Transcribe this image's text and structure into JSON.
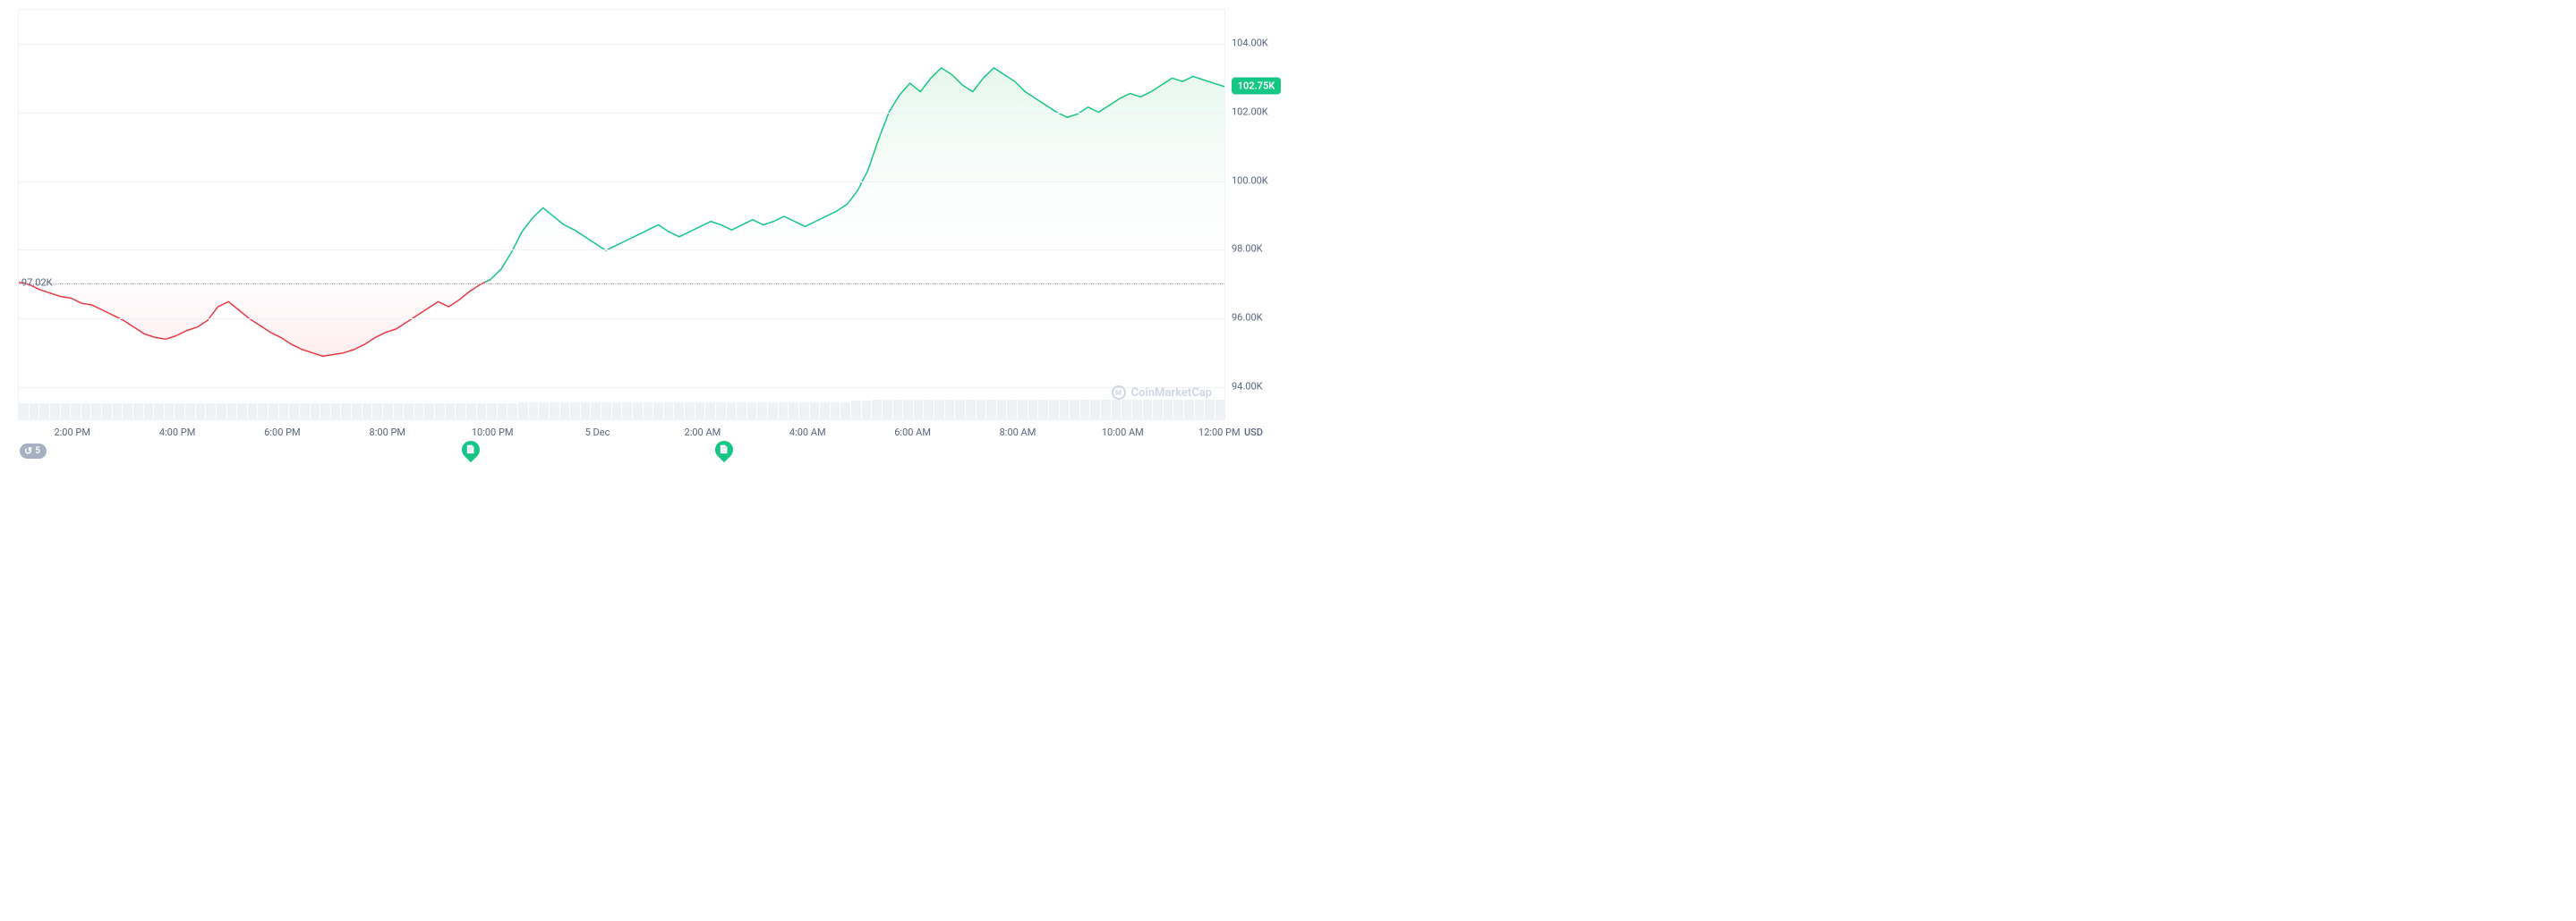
{
  "chart": {
    "type": "area-line",
    "currency": "USD",
    "watermark": "CoinMarketCap",
    "baseline_value": 97.02,
    "baseline_label": "97.02K",
    "current_value": 102.75,
    "current_label": "102.75K",
    "y_axis": {
      "min": 93.0,
      "max": 105.0,
      "ticks": [
        94.0,
        96.0,
        98.0,
        100.0,
        102.0,
        104.0
      ],
      "tick_labels": [
        "94.00K",
        "96.00K",
        "98.00K",
        "100.00K",
        "102.00K",
        "104.00K"
      ],
      "label_color": "#58667e",
      "grid_color": "#f0f2f5",
      "baseline_color": "#a6b0c3"
    },
    "x_axis": {
      "ticks": [
        "2:00 PM",
        "4:00 PM",
        "6:00 PM",
        "8:00 PM",
        "10:00 PM",
        "5 Dec",
        "2:00 AM",
        "4:00 AM",
        "6:00 AM",
        "8:00 AM",
        "10:00 AM",
        "12:00 PM"
      ],
      "tick_positions_pct": [
        4.5,
        13.2,
        21.9,
        30.6,
        39.3,
        48.0,
        56.7,
        65.4,
        74.1,
        82.8,
        91.5,
        99.5
      ]
    },
    "colors": {
      "down_line": "#ea3943",
      "down_fill": "#fdecee",
      "up_line": "#16c784",
      "up_fill_top": "#dff5ea",
      "up_fill_bottom": "#ffffff",
      "background": "#ffffff",
      "current_badge_bg": "#16c784",
      "current_badge_text": "#ffffff"
    },
    "line_width": 1.5,
    "series": [
      97.02,
      96.95,
      96.8,
      96.7,
      96.6,
      96.55,
      96.4,
      96.35,
      96.2,
      96.05,
      95.9,
      95.7,
      95.5,
      95.4,
      95.35,
      95.45,
      95.6,
      95.7,
      95.9,
      96.3,
      96.45,
      96.2,
      95.95,
      95.75,
      95.55,
      95.4,
      95.2,
      95.05,
      94.95,
      94.85,
      94.9,
      94.95,
      95.05,
      95.2,
      95.4,
      95.55,
      95.65,
      95.85,
      96.05,
      96.25,
      96.45,
      96.3,
      96.5,
      96.75,
      96.95,
      97.1,
      97.4,
      97.9,
      98.5,
      98.9,
      99.2,
      98.95,
      98.7,
      98.55,
      98.35,
      98.15,
      97.95,
      98.1,
      98.25,
      98.4,
      98.55,
      98.7,
      98.5,
      98.35,
      98.5,
      98.65,
      98.8,
      98.7,
      98.55,
      98.7,
      98.85,
      98.7,
      98.8,
      98.95,
      98.8,
      98.65,
      98.8,
      98.95,
      99.1,
      99.3,
      99.7,
      100.3,
      101.2,
      102.0,
      102.5,
      102.85,
      102.6,
      103.0,
      103.3,
      103.1,
      102.8,
      102.6,
      103.0,
      103.3,
      103.1,
      102.9,
      102.6,
      102.4,
      102.2,
      102.0,
      101.85,
      101.95,
      102.15,
      102.0,
      102.2,
      102.4,
      102.55,
      102.45,
      102.6,
      102.8,
      103.0,
      102.9,
      103.05,
      102.95,
      102.85,
      102.75
    ],
    "volume": [
      14,
      14,
      14,
      14,
      14,
      14,
      14,
      14,
      14,
      14,
      14,
      14,
      14,
      14,
      14,
      14,
      14,
      14,
      14,
      14,
      14,
      14,
      14,
      14,
      14,
      14,
      14,
      14,
      14,
      14,
      14,
      14,
      14,
      14,
      14,
      14,
      14,
      14,
      14,
      14,
      14,
      14,
      14,
      14,
      14,
      14,
      14,
      14,
      15,
      15,
      15,
      15,
      15,
      15,
      15,
      15,
      15,
      15,
      15,
      15,
      15,
      15,
      15,
      15,
      15,
      15,
      15,
      15,
      15,
      15,
      15,
      15,
      15,
      15,
      15,
      15,
      15,
      15,
      15,
      15,
      16,
      16,
      17,
      17,
      17,
      17,
      17,
      17,
      17,
      17,
      17,
      17,
      17,
      17,
      17,
      17,
      17,
      17,
      17,
      17,
      17,
      17,
      17,
      17,
      17,
      17,
      17,
      17,
      17,
      17,
      17,
      17,
      17,
      17,
      17,
      17
    ],
    "markers": [
      {
        "position_pct": 37.5,
        "type": "news"
      },
      {
        "position_pct": 58.5,
        "type": "news"
      }
    ],
    "history_badge": "5"
  }
}
